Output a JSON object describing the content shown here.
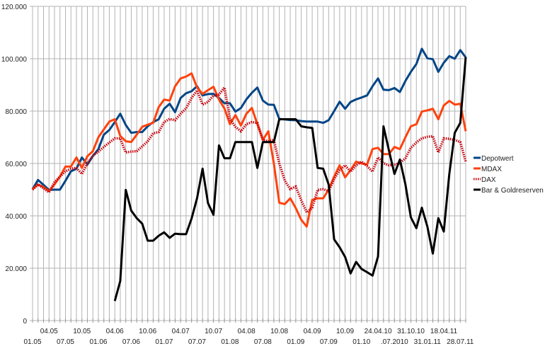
{
  "chart_data": {
    "type": "line",
    "title": "",
    "xlabel": "",
    "ylabel": "",
    "ylim": [
      0,
      120000
    ],
    "y_ticks": [
      "0",
      "20.000",
      "40.000",
      "60.000",
      "80.000",
      "100.000",
      "120.000"
    ],
    "y_tick_values": [
      0,
      20000,
      40000,
      60000,
      80000,
      100000,
      120000
    ],
    "x_tick_labels": [
      "01.05",
      "04.05",
      "07.05",
      "10.05",
      "01.06",
      "04.06",
      "07.06",
      "10.06",
      "01.07",
      "04.07",
      "07.07",
      "10.07",
      "01.08",
      "04.08",
      "07.08",
      "10.08",
      "01.09",
      "04.09",
      "07.09",
      "10.09",
      "01.10",
      "24.04.10",
      ".07.2010",
      "31.10.10",
      "31.01.11",
      "18.04.11",
      "28.07.11"
    ],
    "x_tick_every": 3,
    "point_count": 80,
    "grid": {
      "horizontal": true,
      "vertical": true
    },
    "legend_position": "right",
    "series": [
      {
        "name": "Depotwert",
        "color": "#004586",
        "style": "solid",
        "values": [
          50200,
          53700,
          51800,
          49900,
          50000,
          50000,
          53400,
          57000,
          58000,
          62300,
          59600,
          62800,
          65500,
          71000,
          72800,
          75800,
          79000,
          74700,
          71700,
          72000,
          72000,
          74200,
          75800,
          76900,
          80900,
          82800,
          79600,
          85000,
          86800,
          87600,
          89500,
          86000,
          86500,
          86600,
          85000,
          83000,
          83000,
          79800,
          81200,
          84500,
          87000,
          89000,
          84000,
          82500,
          82400,
          77000,
          76800,
          76600,
          76500,
          76200,
          76000,
          76000,
          76000,
          75500,
          76500,
          80000,
          83600,
          80900,
          83500,
          84500,
          85200,
          86000,
          89500,
          92500,
          88200,
          88000,
          88800,
          87300,
          91500,
          95000,
          98000,
          103800,
          100200,
          99800,
          95000,
          98500,
          101000,
          100000,
          103300,
          100500
        ]
      },
      {
        "name": "MDAX",
        "color": "#ff420e",
        "style": "solid",
        "values": [
          50200,
          52000,
          51000,
          49400,
          52000,
          55000,
          58800,
          58800,
          62300,
          58300,
          62800,
          64700,
          70000,
          73000,
          76000,
          76900,
          70500,
          68500,
          68200,
          71000,
          74000,
          74800,
          75500,
          81500,
          84400,
          84000,
          89500,
          92500,
          93200,
          94400,
          89000,
          86600,
          88000,
          89300,
          84400,
          81000,
          75000,
          78500,
          74500,
          79000,
          81200,
          75000,
          69000,
          72300,
          60000,
          45000,
          44500,
          46700,
          43000,
          38500,
          35900,
          46100,
          46700,
          46700,
          50000,
          55000,
          59300,
          54700,
          57500,
          60700,
          60000,
          59600,
          65500,
          66000,
          63600,
          63600,
          66300,
          65500,
          70000,
          74200,
          75000,
          79800,
          80300,
          80900,
          76900,
          82200,
          83900,
          82500,
          82800,
          72300
        ]
      },
      {
        "name": "DAX",
        "color": "#c5000b",
        "style": "dotted",
        "values": [
          50000,
          52000,
          50500,
          49000,
          52800,
          55000,
          57000,
          58000,
          58300,
          56000,
          60000,
          63000,
          64500,
          66300,
          68000,
          69600,
          69600,
          64200,
          64500,
          64700,
          66500,
          68500,
          71500,
          72000,
          75800,
          77000,
          76500,
          79000,
          81000,
          85000,
          87900,
          82500,
          83500,
          86000,
          86300,
          89000,
          77000,
          74000,
          72300,
          75000,
          75800,
          75500,
          69000,
          68500,
          69000,
          60000,
          53400,
          50200,
          51200,
          46000,
          41300,
          43100,
          49900,
          50200,
          49400,
          54000,
          57500,
          59300,
          56900,
          59300,
          60700,
          59000,
          56900,
          62300,
          60100,
          59300,
          59500,
          60100,
          62000,
          66000,
          68000,
          69600,
          70200,
          70400,
          64200,
          69600,
          69400,
          69000,
          68200,
          60700
        ]
      },
      {
        "name": "Bar & Goldreserven",
        "color": "#000000",
        "style": "solid",
        "values": [
          null,
          null,
          null,
          null,
          null,
          null,
          null,
          null,
          null,
          null,
          null,
          null,
          null,
          null,
          null,
          7500,
          15100,
          49900,
          42000,
          39100,
          37000,
          30500,
          30500,
          32400,
          33700,
          31600,
          33200,
          33000,
          33000,
          39000,
          46700,
          58000,
          44800,
          40400,
          66900,
          62000,
          62000,
          68200,
          68200,
          68200,
          68200,
          58300,
          68200,
          68200,
          68200,
          76900,
          76900,
          76900,
          76900,
          74200,
          73800,
          73600,
          58300,
          58000,
          52000,
          31000,
          28000,
          24300,
          18000,
          22400,
          19700,
          18500,
          17200,
          24500,
          74200,
          65000,
          56000,
          61500,
          52000,
          39400,
          35300,
          43100,
          35900,
          25600,
          39100,
          34000,
          56000,
          71700,
          75500,
          100600
        ]
      }
    ]
  }
}
